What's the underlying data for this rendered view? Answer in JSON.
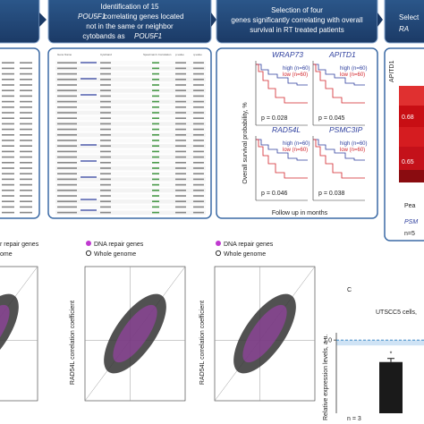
{
  "panel_b": {
    "header": [
      "Identification of 15",
      "POU5F1",
      "correlating genes located",
      "not in the same or neighbor",
      "cytobands as",
      "POU5F1"
    ],
    "columns": [
      "Gene Name",
      "Cytoband",
      "Spearman's Correlation",
      "p-value",
      "q-value"
    ]
  },
  "panel_c_top": {
    "header": [
      "Selection of four",
      "genes significantly correlating with overall",
      "survival in RT treated patients"
    ],
    "y_label": "Overall survival probability, %",
    "x_label": "Follow up in months",
    "plots": [
      {
        "gene": "WRAP73",
        "p": "p = 0.028"
      },
      {
        "gene": "APITD1",
        "p": "p = 0.045"
      },
      {
        "gene": "RAD54L",
        "p": "p = 0.046"
      },
      {
        "gene": "PSMC3IP",
        "p": "p = 0.038"
      }
    ],
    "legend": [
      "high (n=60)",
      "low (n=60)"
    ]
  },
  "panel_d_top": {
    "header": [
      "Select",
      "RA"
    ],
    "column": "APITD1",
    "values": [
      "0.68",
      "0.65"
    ],
    "notes": [
      "Pea",
      "PSM",
      "n=5"
    ]
  },
  "scatter": {
    "legend": [
      "DNA repair genes",
      "Whole genome"
    ],
    "y_label": "RAD54L correlation coefficient",
    "cropped_legend": [
      "r repair genes",
      "ome"
    ]
  },
  "panel_c": {
    "letter": "C",
    "title": "UTSCC5 cells,",
    "y_label": "Relative expression levels, a.u.",
    "n_label": "n = 3",
    "star": "*",
    "ylim": [
      0,
      1.1
    ],
    "yticks": [
      {
        "value": 1,
        "label": "1.0"
      }
    ],
    "values": [
      1,
      0.7
    ]
  }
}
